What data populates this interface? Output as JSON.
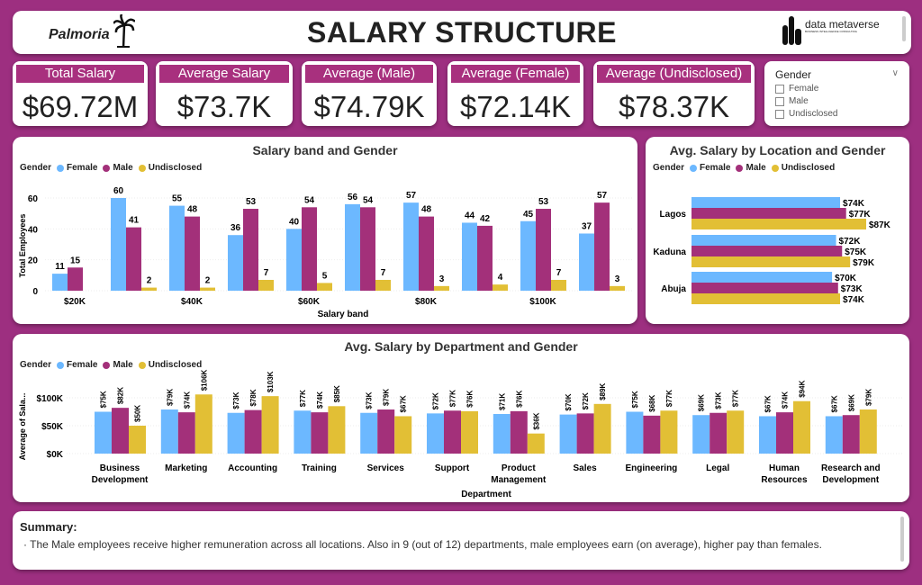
{
  "header": {
    "title": "SALARY STRUCTURE",
    "logo_left": "Palmoria",
    "logo_right": "data metaverse",
    "logo_right_tagline": "BUSINESS INTELLIGENCE CONSULTING"
  },
  "kpis": [
    {
      "label": "Total Salary",
      "value": "$69.72M"
    },
    {
      "label": "Average Salary",
      "value": "$73.7K"
    },
    {
      "label": "Average (Male)",
      "value": "$74.79K"
    },
    {
      "label": "Average (Female)",
      "value": "$72.14K"
    },
    {
      "label": "Average (Undisclosed)",
      "value": "$78.37K"
    }
  ],
  "slicer": {
    "title": "Gender",
    "options": [
      "Female",
      "Male",
      "Undisclosed"
    ]
  },
  "colors": {
    "female": "#6cb8ff",
    "male": "#a3307a",
    "undisclosed": "#e2bf35",
    "background": "#9d2f80"
  },
  "legend": {
    "title": "Gender",
    "items": [
      "Female",
      "Male",
      "Undisclosed"
    ]
  },
  "chart_data": [
    {
      "type": "bar",
      "title": "Salary band and Gender",
      "xlabel": "Salary band",
      "ylabel": "Total Employees",
      "ylim": [
        0,
        65
      ],
      "yticks": [
        "0",
        "20",
        "40",
        "60"
      ],
      "categories": [
        "$20K",
        "",
        "$40K",
        "",
        "$60K",
        "",
        "$80K",
        "",
        "$100K",
        ""
      ],
      "series": [
        {
          "name": "Female",
          "values": [
            11,
            60,
            55,
            36,
            40,
            56,
            57,
            44,
            45,
            37
          ]
        },
        {
          "name": "Male",
          "values": [
            15,
            41,
            48,
            53,
            54,
            54,
            48,
            42,
            53,
            57
          ]
        },
        {
          "name": "Undisclosed",
          "values": [
            null,
            2,
            2,
            7,
            5,
            7,
            3,
            4,
            7,
            3
          ]
        }
      ]
    },
    {
      "type": "bar",
      "orientation": "horizontal",
      "title": "Avg. Salary by Location and Gender",
      "categories": [
        "Lagos",
        "Kaduna",
        "Abuja"
      ],
      "series": [
        {
          "name": "Female",
          "values": [
            74,
            72,
            70
          ],
          "labels": [
            "$74K",
            "$72K",
            "$70K"
          ]
        },
        {
          "name": "Male",
          "values": [
            77,
            75,
            73
          ],
          "labels": [
            "$77K",
            "$75K",
            "$73K"
          ]
        },
        {
          "name": "Undisclosed",
          "values": [
            87,
            79,
            74
          ],
          "labels": [
            "$87K",
            "$79K",
            "$74K"
          ]
        }
      ]
    },
    {
      "type": "bar",
      "title": "Avg. Salary by Department and Gender",
      "xlabel": "Department",
      "ylabel": "Average of Sala...",
      "ylim": [
        0,
        110
      ],
      "yticks": [
        "$0K",
        "$50K",
        "$100K"
      ],
      "categories": [
        "Business Development",
        "Marketing",
        "Accounting",
        "Training",
        "Services",
        "Support",
        "Product Management",
        "Sales",
        "Engineering",
        "Legal",
        "Human Resources",
        "Research and Development"
      ],
      "series": [
        {
          "name": "Female",
          "values": [
            75,
            79,
            73,
            77,
            73,
            72,
            71,
            70,
            75,
            69,
            67,
            67
          ]
        },
        {
          "name": "Male",
          "values": [
            82,
            74,
            78,
            74,
            79,
            77,
            76,
            72,
            68,
            73,
            74,
            69
          ]
        },
        {
          "name": "Undisclosed",
          "values": [
            50,
            106,
            103,
            85,
            67,
            76,
            36,
            89,
            77,
            77,
            94,
            79
          ]
        }
      ]
    }
  ],
  "summary": {
    "title": "Summary:",
    "text": "The Male employees receive higher remuneration across all locations. Also in 9 (out of 12) departments, male employees earn (on average), higher pay than females."
  }
}
